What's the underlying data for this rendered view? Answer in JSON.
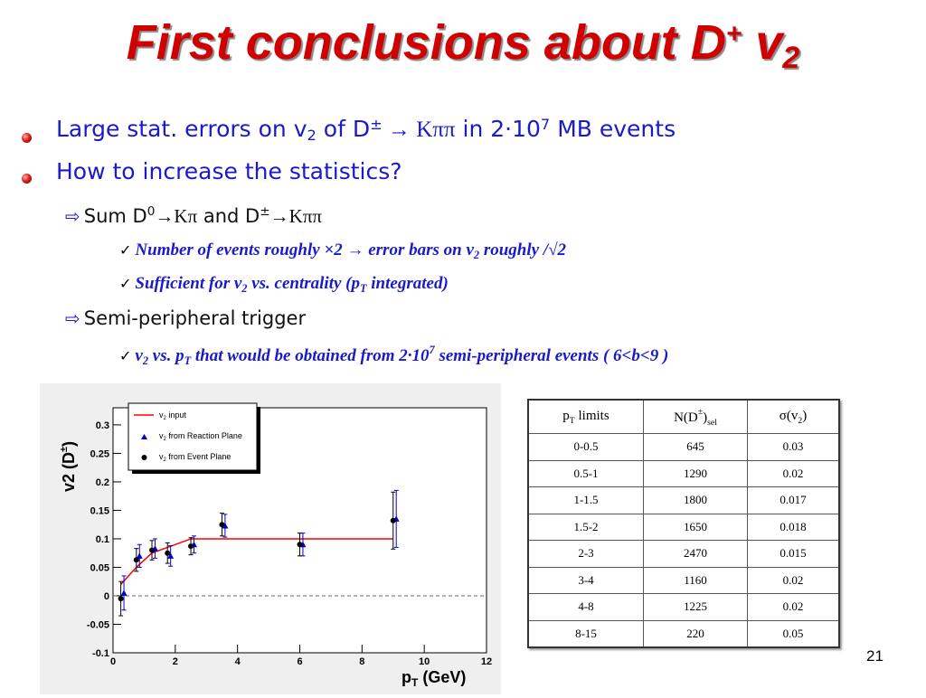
{
  "slide": {
    "title": "First conclusions about D",
    "title_sup": "+",
    "title_sub": "2",
    "title_v": " v",
    "page_number": "21"
  },
  "bullets": {
    "b1": {
      "pre": "Large stat. errors on v",
      "sub": "2",
      "mid": "  of D",
      "sup": "±",
      "arrow": " → ",
      "kpp": "Kππ",
      "post1": " in 2·10",
      "sup2": "7",
      "post2": " MB events"
    },
    "b2": "How to increase the statistics?",
    "sum": {
      "pre": "Sum D",
      "sup0": "0",
      "arr": "→",
      "kp": "Kπ",
      "and": " and D",
      "sup": "±",
      "arr2": "→",
      "kpp": "Kππ"
    },
    "check1": {
      "pre": "Number of events roughly ",
      "times": "×",
      "mid": "2 → error bars on v",
      "sub": "2",
      "post": " roughly /√2"
    },
    "check2": {
      "pre": "Sufficient for v",
      "sub": "2",
      "mid": " vs. centrality (p",
      "sub2": "T",
      "post": " integrated)"
    },
    "semi": "Semi-peripheral trigger",
    "check3": {
      "pre": "v",
      "sub": "2",
      "mid": " vs. p",
      "sub2": "T",
      "mid2": " that would be obtained from 2·10",
      "sup": "7",
      "post": " semi-peripheral events ( 6<b<9 )"
    }
  },
  "table": {
    "headers": {
      "h1_pre": "p",
      "h1_sub": "T",
      "h1_post": " limits",
      "h2_pre": "N(D",
      "h2_sup": "±",
      "h2_post": ")",
      "h2_sub": "sel",
      "h3": "σ(v",
      "h3_sub": "2",
      "h3_post": ")"
    },
    "rows": [
      [
        "0-0.5",
        "645",
        "0.03"
      ],
      [
        "0.5-1",
        "1290",
        "0.02"
      ],
      [
        "1-1.5",
        "1800",
        "0.017"
      ],
      [
        "1.5-2",
        "1650",
        "0.018"
      ],
      [
        "2-3",
        "2470",
        "0.015"
      ],
      [
        "3-4",
        "1160",
        "0.02"
      ],
      [
        "4-8",
        "1225",
        "0.02"
      ],
      [
        "8-15",
        "220",
        "0.05"
      ]
    ]
  },
  "chart_data": {
    "type": "scatter",
    "xlabel_main": "p",
    "xlabel_sub": "T",
    "xlabel_unit": " (GeV)",
    "ylabel": "v2 (D",
    "ylabel_sup": "±",
    "ylabel_post": ")",
    "xlim": [
      0,
      12
    ],
    "ylim": [
      -0.1,
      0.33
    ],
    "xticks": [
      0,
      2,
      4,
      6,
      8,
      10,
      12
    ],
    "yticks": [
      -0.1,
      -0.05,
      0,
      0.05,
      0.1,
      0.15,
      0.2,
      0.25,
      0.3
    ],
    "ytick_labels": [
      "-0.1",
      "-0.05",
      "0",
      "0.05",
      "0.1",
      "0.15",
      "0.2",
      "0.25",
      "0.3"
    ],
    "legend_position": "top-left",
    "legend": {
      "input": {
        "pre": "v",
        "sub": "2",
        "post": " input"
      },
      "rp": {
        "pre": "v",
        "sub": "2",
        "post": " from Reaction Plane"
      },
      "ep": {
        "pre": "v",
        "sub": "2",
        "post": " from Event Plane"
      }
    },
    "series": [
      {
        "kind": "line",
        "color": "#ff0000",
        "x": [
          0.25,
          0.75,
          1.25,
          1.75,
          2.5,
          9.0
        ],
        "y": [
          0.02,
          0.05,
          0.075,
          0.085,
          0.1,
          0.1
        ]
      },
      {
        "kind": "points",
        "marker": "triangle",
        "color": "#0000cc",
        "x": [
          0.35,
          0.85,
          1.35,
          1.85,
          2.6,
          3.6,
          6.1,
          9.1
        ],
        "y": [
          0.005,
          0.07,
          0.083,
          0.07,
          0.09,
          0.123,
          0.09,
          0.135
        ],
        "err": [
          0.03,
          0.02,
          0.017,
          0.018,
          0.015,
          0.02,
          0.02,
          0.05
        ]
      },
      {
        "kind": "points",
        "marker": "circle",
        "color": "#000000",
        "x": [
          0.25,
          0.75,
          1.25,
          1.75,
          2.5,
          3.5,
          6.0,
          9.0
        ],
        "y": [
          -0.005,
          0.063,
          0.08,
          0.075,
          0.087,
          0.125,
          0.09,
          0.132
        ],
        "err": [
          0.03,
          0.02,
          0.017,
          0.018,
          0.015,
          0.02,
          0.02,
          0.05
        ]
      }
    ]
  }
}
